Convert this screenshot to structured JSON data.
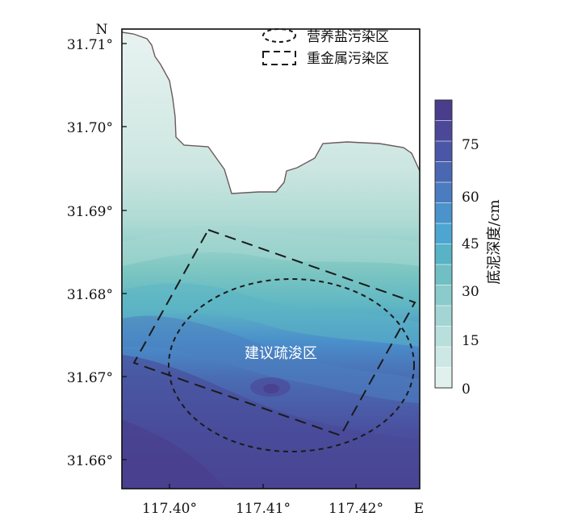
{
  "map": {
    "lat_ticks": [
      "31.71°",
      "31.70°",
      "31.69°",
      "31.68°",
      "31.67°",
      "31.66°"
    ],
    "lon_ticks": [
      "117.40°",
      "117.41°",
      "117.42°"
    ],
    "north_label": "N",
    "east_label": "E",
    "legend": {
      "ellipse_label": "营养盐污染区",
      "rect_label": "重金属污染区"
    },
    "area_label": "建议疏浚区"
  },
  "colorbar": {
    "title": "底泥深度/cm",
    "ticks": [
      "75",
      "60",
      "45",
      "30",
      "15",
      "0"
    ],
    "colors": [
      "#4a3d8c",
      "#4b4799",
      "#4a57a6",
      "#4a67b2",
      "#4a7cbf",
      "#4a93cb",
      "#4da6d1",
      "#58b3c6",
      "#70bfc4",
      "#8acbcb",
      "#a2d5d3",
      "#b9dfdc",
      "#cde8e4",
      "#dff0ed"
    ]
  },
  "colors": {
    "land": "#ffffff",
    "shore": "#6a5a5a",
    "outline": "#1a1a1a"
  }
}
